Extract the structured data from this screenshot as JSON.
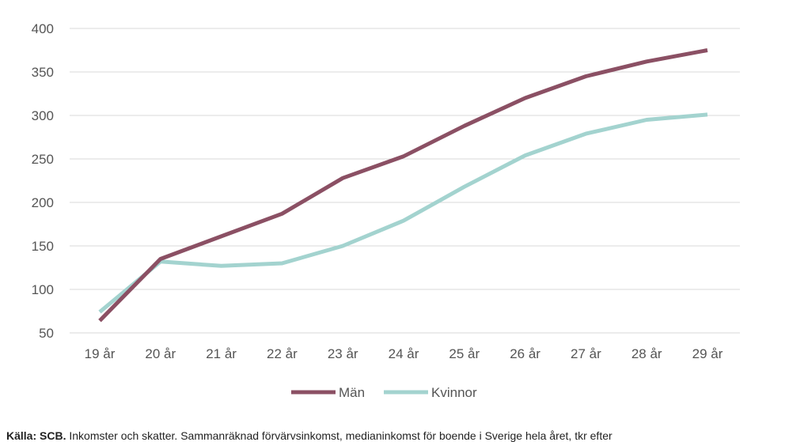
{
  "chart_data": {
    "type": "line",
    "title": "",
    "xlabel": "",
    "ylabel": "",
    "categories": [
      "19 år",
      "20 år",
      "21 år",
      "22 år",
      "23 år",
      "24 år",
      "25 år",
      "26 år",
      "27 år",
      "28 år",
      "29 år"
    ],
    "y_ticks": [
      50,
      100,
      150,
      200,
      250,
      300,
      350,
      400
    ],
    "ylim": [
      50,
      400
    ],
    "grid": true,
    "legend_position": "bottom",
    "series": [
      {
        "name": "Män",
        "color": "#8b5064",
        "values": [
          64,
          135,
          161,
          187,
          228,
          253,
          288,
          320,
          345,
          362,
          375
        ]
      },
      {
        "name": "Kvinnor",
        "color": "#a3d3cf",
        "values": [
          74,
          132,
          127,
          130,
          150,
          179,
          218,
          254,
          279,
          295,
          301
        ]
      }
    ]
  },
  "source": {
    "label": "Källa: SCB.",
    "text": "Inkomster och skatter. Sammanräknad förvärvsinkomst, medianinkomst för boende i Sverige hela året, tkr efter"
  }
}
